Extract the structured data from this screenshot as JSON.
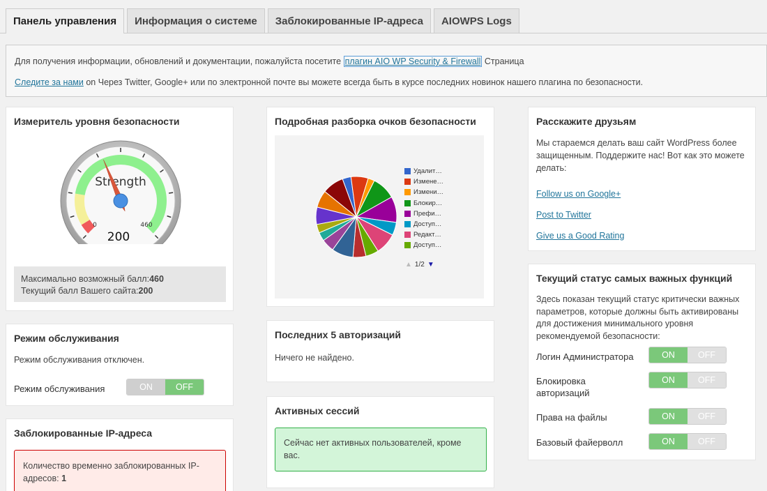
{
  "tabs": [
    "Панель управления",
    "Информация о системе",
    "Заблокированные IP-адреса",
    "AIOWPS Logs"
  ],
  "notice": {
    "line1_prefix": "Для получения информации, обновлений и документации, пожалуйста посетите",
    "line1_link": "плагин AIO WP Security & Firewall",
    "line1_suffix": "Страница",
    "line2_link": "Следите за нами",
    "line2_text": "on Через Twitter, Google+ или по электронной почте вы можете всегда быть в курсе последних новинок нашего плагина по безопасности."
  },
  "meter": {
    "title": "Измеритель уровня безопасности",
    "gauge_label": "Strength",
    "min_label": "0",
    "max_label": "460",
    "value_label": "200",
    "value": 200,
    "max_value": 460,
    "max_text": "Максимально возможный балл:",
    "max_number": "460",
    "current_text": "Текущий балл Вашего сайта:",
    "current_number": "200"
  },
  "breakdown": {
    "title": "Подробная разборка очков безопасности",
    "legend": [
      "Удалит…",
      "Измене…",
      "Измени…",
      "Блокир…",
      "Префи…",
      "Доступ…",
      "Редакт…",
      "Доступ…"
    ],
    "legend_colors": [
      "#3366cc",
      "#dc3912",
      "#ff9900",
      "#109618",
      "#990099",
      "#0099c6",
      "#dd4477",
      "#66aa00"
    ],
    "pager": "1/2",
    "up_icon": "triangle-up-icon",
    "down_icon": "triangle-down-icon"
  },
  "friends": {
    "title": "Расскажите друзьям",
    "text": "Мы стараемся делать ваш сайт WordPress более защищенным. Поддержите нас! Вот как это можете делать:",
    "links": [
      "Follow us on Google+",
      "Post to Twitter",
      "Give us a Good Rating"
    ]
  },
  "maintenance": {
    "title": "Режим обслуживания",
    "status": "Режим обслуживания отключен.",
    "label": "Режим обслуживания",
    "state": "off"
  },
  "logins": {
    "title": "Последних 5 авторизаций",
    "empty": "Ничего не найдено."
  },
  "sessions": {
    "title": "Активных сессий",
    "message": "Сейчас нет активных пользователей, кроме вас."
  },
  "features": {
    "title": "Текущий статус самых важных функций",
    "text": "Здесь показан текущий статус критически важных параметров, которые должны быть активированы для достижения минимального уровня рекомендуемой безопасности:",
    "items": [
      {
        "label": "Логин Администратора",
        "state": "on"
      },
      {
        "label": "Блокировка авторизаций",
        "state": "on"
      },
      {
        "label": "Права на файлы",
        "state": "on"
      },
      {
        "label": "Базовый файерволл",
        "state": "on"
      }
    ]
  },
  "toggle": {
    "on": "ON",
    "off": "OFF"
  },
  "blocked": {
    "title": "Заблокированные IP-адреса",
    "text": "Количество временно заблокированных IP-адресов:",
    "count": "1"
  }
}
